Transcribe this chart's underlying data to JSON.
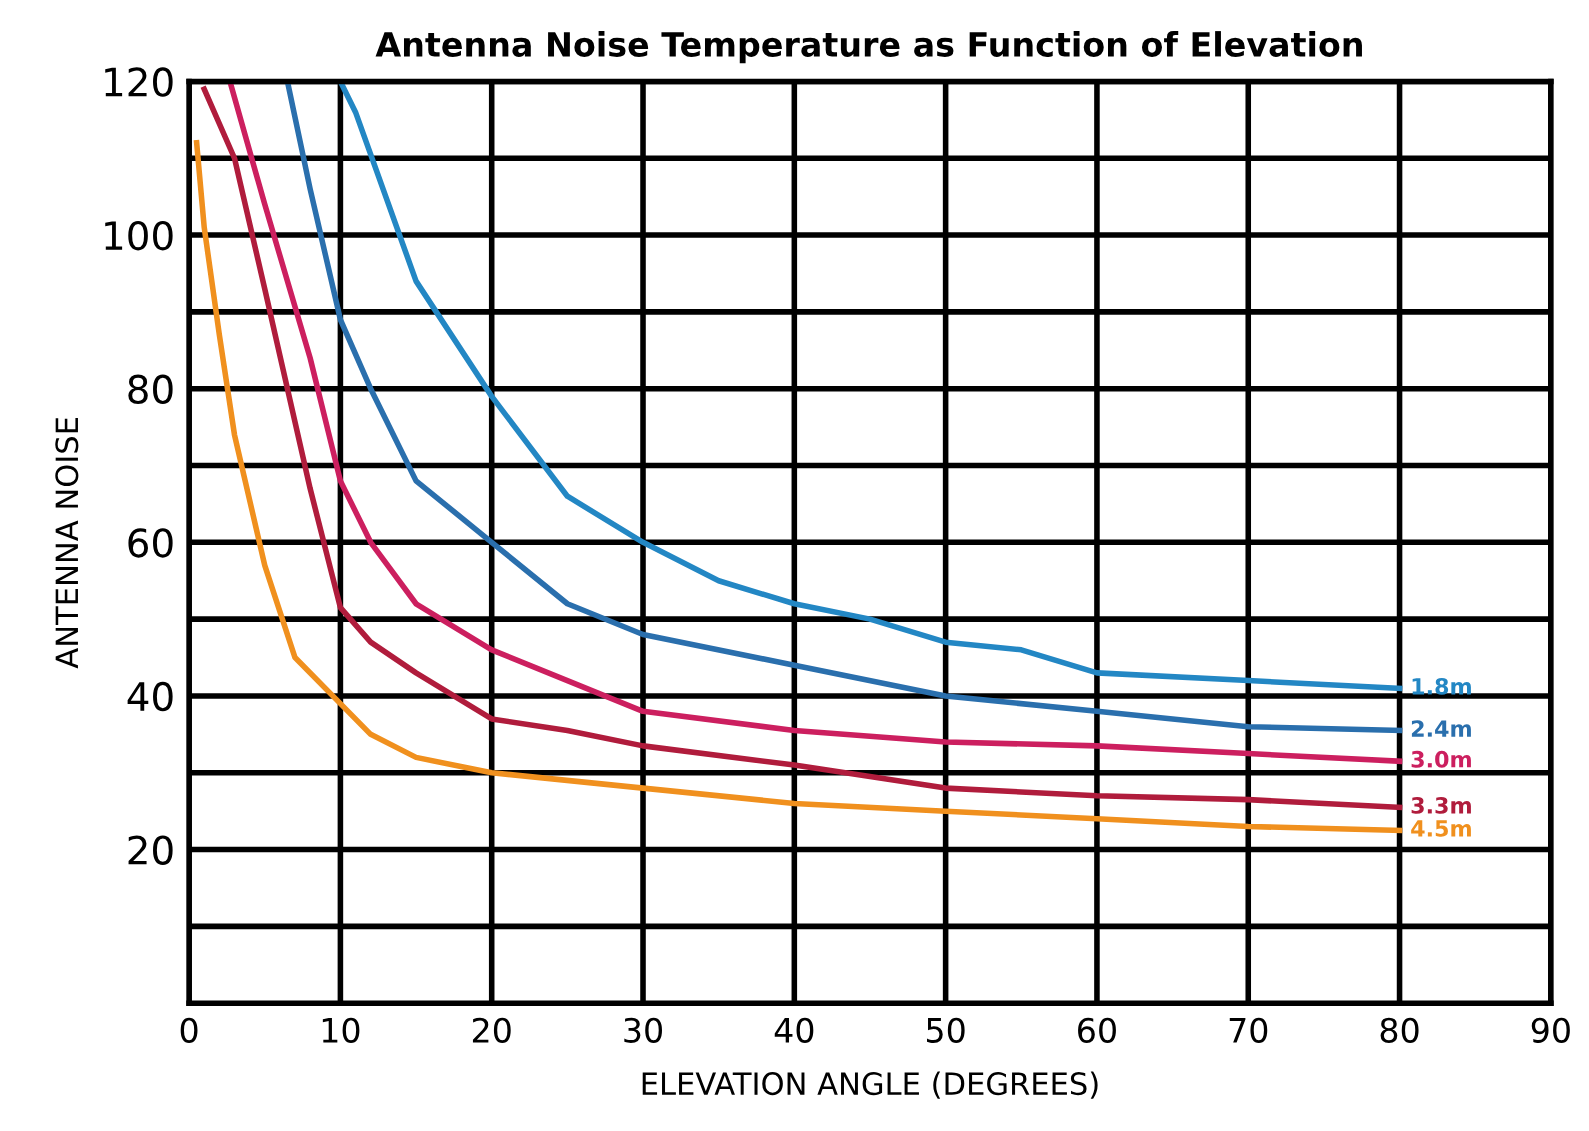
{
  "chart_data": {
    "type": "line",
    "title": "Antenna Noise Temperature as Function of Elevation",
    "xlabel": "ELEVATION ANGLE (DEGREES)",
    "ylabel": "ANTENNA NOISE",
    "xlim": [
      0,
      90
    ],
    "ylim": [
      0,
      120
    ],
    "xticks": [
      0,
      10,
      20,
      30,
      40,
      50,
      60,
      70,
      80,
      90
    ],
    "yticks": [
      {
        "value": 10,
        "label": null
      },
      20,
      {
        "value": 30,
        "label": null
      },
      40,
      {
        "value": 50,
        "label": null
      },
      60,
      {
        "value": 70,
        "label": null
      },
      80,
      {
        "value": 90,
        "label": null
      },
      100,
      {
        "value": 110,
        "label": null
      },
      120
    ],
    "grid": true,
    "legend": false,
    "line_style": "solid",
    "marker": "none",
    "series": [
      {
        "name": "1.8m",
        "color": "#2387c4",
        "x": [
          10,
          11,
          15,
          20,
          25,
          30,
          35,
          40,
          45,
          50,
          55,
          60,
          70,
          80
        ],
        "values": [
          120,
          116,
          94,
          79,
          66,
          60,
          55,
          52,
          50,
          47,
          46,
          43,
          42,
          41
        ]
      },
      {
        "name": "2.4m",
        "color": "#2a6fad",
        "x": [
          6.5,
          8,
          10,
          12,
          15,
          20,
          25,
          30,
          40,
          50,
          60,
          70,
          80
        ],
        "values": [
          120,
          106,
          89,
          80,
          68,
          60,
          52,
          48,
          44,
          40,
          38,
          36,
          35.5
        ]
      },
      {
        "name": "3.0m",
        "color": "#cc1f5f",
        "x": [
          2.7,
          5,
          8,
          10,
          12,
          15,
          20,
          25,
          30,
          40,
          50,
          60,
          70,
          80
        ],
        "values": [
          120,
          104,
          84,
          68,
          60,
          52,
          46,
          42,
          38,
          35.5,
          34,
          33.5,
          32.5,
          31.5
        ]
      },
      {
        "name": "3.3m",
        "color": "#b01c3c",
        "x": [
          1,
          3,
          5,
          8,
          10,
          12,
          15,
          20,
          25,
          30,
          40,
          50,
          60,
          70,
          80
        ],
        "values": [
          119,
          110,
          93,
          67,
          51.5,
          47,
          43,
          37,
          35.5,
          33.5,
          31,
          28,
          27,
          26.5,
          25.5
        ]
      },
      {
        "name": "4.5m",
        "color": "#f0901e",
        "x": [
          0.5,
          1,
          2,
          3,
          5,
          7,
          10,
          12,
          15,
          20,
          30,
          40,
          50,
          60,
          70,
          80
        ],
        "values": [
          112,
          101,
          87,
          74,
          57,
          45,
          39,
          35,
          32,
          30,
          28,
          26,
          25,
          24,
          23,
          22.5
        ]
      }
    ]
  }
}
